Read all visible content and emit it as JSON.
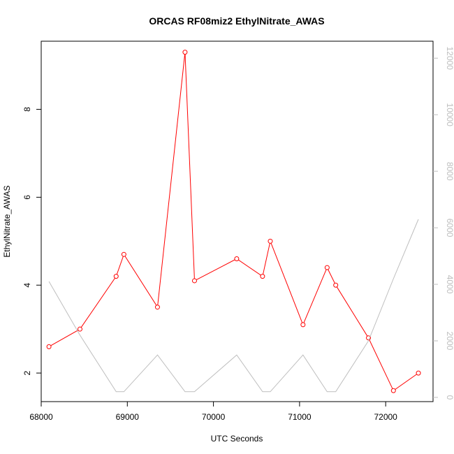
{
  "chart_data": {
    "type": "line",
    "title": "ORCAS RF08miz2 EthylNitrate_AWAS",
    "xlabel": "UTC Seconds",
    "ylabel": "EthylNitrate_AWAS",
    "xlim": [
      68000,
      72550
    ],
    "ylim": [
      1.35,
      9.55
    ],
    "y2lim": [
      -150,
      12600
    ],
    "x_ticks": [
      68000,
      69000,
      70000,
      71000,
      72000
    ],
    "y_ticks": [
      2,
      4,
      6,
      8
    ],
    "y2_ticks": [
      0,
      2000,
      4000,
      6000,
      8000,
      10000,
      12000
    ],
    "series": [
      {
        "axis": "left",
        "color": "#ff0000",
        "markers": true,
        "x": [
          68090,
          68450,
          68870,
          68960,
          69350,
          69670,
          69780,
          70270,
          70570,
          70660,
          71040,
          71320,
          71420,
          71800,
          72090,
          72380
        ],
        "y": [
          2.6,
          3.0,
          4.2,
          4.7,
          3.5,
          9.3,
          4.1,
          4.6,
          4.2,
          5.0,
          3.1,
          4.4,
          4.0,
          2.8,
          1.6,
          2.0
        ]
      },
      {
        "axis": "right",
        "color": "#bebebe",
        "markers": false,
        "x": [
          68090,
          68450,
          68870,
          68960,
          69350,
          69670,
          69780,
          70270,
          70570,
          70660,
          71040,
          71320,
          71420,
          71800,
          72090,
          72380
        ],
        "y": [
          4100,
          2200,
          200,
          200,
          1500,
          200,
          200,
          1500,
          200,
          200,
          1500,
          200,
          200,
          2000,
          4200,
          6300
        ]
      }
    ]
  }
}
